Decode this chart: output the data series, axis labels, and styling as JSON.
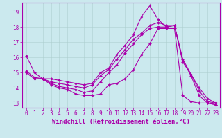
{
  "background_color": "#cbe9ee",
  "plot_bg_color": "#cbe9ee",
  "line_color": "#aa00aa",
  "marker": "D",
  "markersize": 2.0,
  "linewidth": 0.8,
  "xlabel": "Windchill (Refroidissement éolien,°C)",
  "xlabel_fontsize": 6.5,
  "tick_fontsize": 5.5,
  "xlim": [
    -0.5,
    23.5
  ],
  "ylim": [
    12.7,
    19.6
  ],
  "yticks": [
    13,
    14,
    15,
    16,
    17,
    18,
    19
  ],
  "xticks": [
    0,
    1,
    2,
    3,
    4,
    5,
    6,
    7,
    8,
    9,
    10,
    11,
    12,
    13,
    14,
    15,
    16,
    17,
    18,
    19,
    20,
    21,
    22,
    23
  ],
  "series": [
    [
      16.1,
      15.0,
      14.6,
      14.6,
      14.5,
      14.4,
      14.3,
      14.2,
      14.3,
      15.0,
      15.3,
      16.2,
      16.8,
      17.5,
      18.7,
      19.4,
      18.5,
      18.0,
      18.1,
      15.8,
      14.8,
      13.5,
      13.0,
      12.9
    ],
    [
      15.0,
      14.6,
      14.6,
      14.4,
      14.3,
      14.2,
      14.1,
      14.0,
      14.2,
      14.8,
      15.2,
      15.9,
      16.5,
      17.2,
      17.6,
      18.1,
      18.3,
      18.1,
      18.1,
      15.9,
      14.9,
      14.0,
      13.3,
      13.0
    ],
    [
      15.0,
      14.6,
      14.6,
      14.3,
      14.1,
      14.0,
      13.9,
      13.7,
      13.8,
      14.4,
      15.0,
      15.5,
      16.3,
      16.9,
      17.5,
      17.9,
      18.0,
      18.0,
      18.1,
      15.7,
      14.9,
      13.8,
      13.1,
      13.0
    ],
    [
      15.1,
      14.7,
      14.6,
      14.2,
      14.0,
      13.9,
      13.6,
      13.5,
      13.5,
      13.6,
      14.2,
      14.3,
      14.6,
      15.2,
      16.2,
      16.9,
      17.9,
      17.9,
      17.9,
      13.5,
      13.1,
      13.0,
      13.0,
      12.9
    ]
  ]
}
